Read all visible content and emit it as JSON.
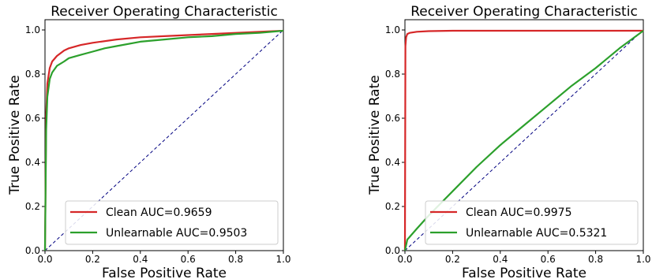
{
  "chart_data": [
    {
      "type": "line",
      "title": "Receiver Operating Characteristic",
      "xlabel": "False Positive Rate",
      "ylabel": "True Positive Rate",
      "xlim": [
        0,
        1
      ],
      "ylim": [
        0,
        1.05
      ],
      "xticks": [
        "0.0",
        "0.2",
        "0.4",
        "0.6",
        "0.8",
        "1.0"
      ],
      "yticks": [
        "0.0",
        "0.2",
        "0.4",
        "0.6",
        "0.8",
        "1.0"
      ],
      "grid": false,
      "legend_position": "lower-right",
      "diagonal": {
        "style": "dashed",
        "color": "#000080",
        "x": [
          0,
          1
        ],
        "y": [
          0,
          1
        ]
      },
      "series": [
        {
          "name": "Clean AUC=0.9659",
          "color": "#d62728",
          "x": [
            0,
            0.005,
            0.01,
            0.02,
            0.03,
            0.05,
            0.08,
            0.1,
            0.15,
            0.2,
            0.3,
            0.4,
            0.5,
            0.6,
            0.7,
            0.8,
            0.9,
            1.0
          ],
          "y": [
            0,
            0.62,
            0.76,
            0.83,
            0.86,
            0.885,
            0.91,
            0.92,
            0.935,
            0.945,
            0.96,
            0.97,
            0.975,
            0.98,
            0.985,
            0.99,
            0.995,
            1.0
          ]
        },
        {
          "name": "Unlearnable AUC=0.9503",
          "color": "#2ca02c",
          "x": [
            0,
            0.005,
            0.01,
            0.02,
            0.03,
            0.05,
            0.08,
            0.1,
            0.15,
            0.2,
            0.25,
            0.3,
            0.4,
            0.5,
            0.6,
            0.7,
            0.8,
            0.9,
            1.0
          ],
          "y": [
            0,
            0.55,
            0.7,
            0.78,
            0.81,
            0.84,
            0.86,
            0.875,
            0.89,
            0.905,
            0.92,
            0.93,
            0.95,
            0.96,
            0.97,
            0.975,
            0.985,
            0.99,
            1.0
          ]
        }
      ]
    },
    {
      "type": "line",
      "title": "Receiver Operating Characteristic",
      "xlabel": "False Positive Rate",
      "ylabel": "True Positive Rate",
      "xlim": [
        0,
        1
      ],
      "ylim": [
        0,
        1.05
      ],
      "xticks": [
        "0.0",
        "0.2",
        "0.4",
        "0.6",
        "0.8",
        "1.0"
      ],
      "yticks": [
        "0.0",
        "0.2",
        "0.4",
        "0.6",
        "0.8",
        "1.0"
      ],
      "grid": false,
      "legend_position": "lower-right",
      "diagonal": {
        "style": "dashed",
        "color": "#000080",
        "x": [
          0,
          1
        ],
        "y": [
          0,
          1
        ]
      },
      "series": [
        {
          "name": "Clean AUC=0.9975",
          "color": "#d62728",
          "x": [
            0,
            0.002,
            0.005,
            0.01,
            0.02,
            0.05,
            0.1,
            0.2,
            0.4,
            0.6,
            0.8,
            1.0
          ],
          "y": [
            0,
            0.93,
            0.97,
            0.985,
            0.99,
            0.995,
            0.998,
            1.0,
            1.0,
            1.0,
            1.0,
            1.0
          ]
        },
        {
          "name": "Unlearnable AUC=0.5321",
          "color": "#2ca02c",
          "x": [
            0,
            0.01,
            0.05,
            0.1,
            0.2,
            0.3,
            0.4,
            0.5,
            0.6,
            0.7,
            0.8,
            0.9,
            1.0
          ],
          "y": [
            0,
            0.05,
            0.1,
            0.16,
            0.27,
            0.38,
            0.48,
            0.57,
            0.66,
            0.75,
            0.83,
            0.92,
            1.0
          ]
        }
      ]
    }
  ]
}
